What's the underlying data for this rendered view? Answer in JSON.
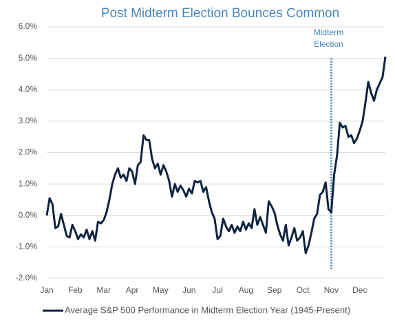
{
  "chart_data": {
    "type": "line",
    "title": "Post Midterm Election Bounces Common",
    "categories": [
      "Jan",
      null,
      null,
      null,
      null,
      null,
      null,
      null,
      null,
      null,
      "Feb",
      null,
      null,
      null,
      null,
      null,
      null,
      null,
      null,
      null,
      "Mar",
      null,
      null,
      null,
      null,
      null,
      null,
      null,
      null,
      null,
      "Apr",
      null,
      null,
      null,
      null,
      null,
      null,
      null,
      null,
      null,
      "May",
      null,
      null,
      null,
      null,
      null,
      null,
      null,
      null,
      null,
      "Jun",
      null,
      null,
      null,
      null,
      null,
      null,
      null,
      null,
      null,
      "Jul",
      null,
      null,
      null,
      null,
      null,
      null,
      null,
      null,
      null,
      "Aug",
      null,
      null,
      null,
      null,
      null,
      null,
      null,
      null,
      null,
      "Sep",
      null,
      null,
      null,
      null,
      null,
      null,
      null,
      null,
      null,
      "Oct",
      null,
      null,
      null,
      null,
      null,
      null,
      null,
      null,
      null,
      "Nov",
      null,
      null,
      null,
      null,
      null,
      null,
      null,
      null,
      null,
      "Dec",
      null,
      null,
      null,
      null,
      null,
      null,
      null,
      null,
      null
    ],
    "series": [
      {
        "name": "Average S&P 500 Performance in Midterm Election Year (1945-Present)",
        "color": "#0f2340",
        "values": [
          0.0,
          0.55,
          0.35,
          -0.4,
          -0.35,
          0.05,
          -0.3,
          -0.65,
          -0.7,
          -0.3,
          -0.5,
          -0.75,
          -0.6,
          -0.7,
          -0.45,
          -0.75,
          -0.5,
          -0.8,
          -0.2,
          -0.25,
          -0.15,
          0.1,
          0.5,
          1.0,
          1.3,
          1.5,
          1.2,
          1.3,
          1.1,
          1.5,
          1.4,
          1.0,
          1.6,
          1.7,
          2.55,
          2.4,
          2.4,
          1.8,
          1.5,
          1.65,
          1.3,
          1.6,
          1.4,
          1.1,
          0.6,
          1.0,
          0.75,
          0.95,
          0.8,
          0.6,
          0.85,
          0.7,
          1.1,
          1.05,
          1.1,
          0.75,
          0.9,
          0.45,
          0.1,
          -0.1,
          -0.75,
          -0.65,
          -0.1,
          -0.35,
          -0.5,
          -0.3,
          -0.55,
          -0.35,
          -0.5,
          -0.2,
          -0.45,
          -0.25,
          -0.4,
          0.2,
          -0.3,
          -0.05,
          -0.3,
          -0.55,
          0.45,
          0.3,
          0.1,
          -0.3,
          -0.6,
          -0.8,
          -0.3,
          -0.95,
          -0.7,
          -0.4,
          -0.8,
          -0.7,
          -0.5,
          -1.2,
          -0.95,
          -0.55,
          -0.1,
          0.05,
          0.65,
          0.75,
          1.05,
          0.2,
          0.1,
          1.3,
          1.9,
          2.95,
          2.8,
          2.85,
          2.5,
          2.55,
          2.3,
          2.45,
          2.7,
          3.0,
          3.6,
          4.25,
          3.9,
          3.65,
          4.0,
          4.2,
          4.4,
          5.05
        ]
      }
    ],
    "ylim": [
      -2,
      6
    ],
    "yticks": [
      {
        "value": -2,
        "label": "-2.0%"
      },
      {
        "value": -1,
        "label": "-1.0%"
      },
      {
        "value": 0,
        "label": "0.0%"
      },
      {
        "value": 1,
        "label": "1.0%"
      },
      {
        "value": 2,
        "label": "2.0%"
      },
      {
        "value": 3,
        "label": "3.0%"
      },
      {
        "value": 4,
        "label": "4.0%"
      },
      {
        "value": 5,
        "label": "5.0%"
      },
      {
        "value": 6,
        "label": "6.0%"
      }
    ],
    "grid": true,
    "annotation": {
      "text": [
        "Midterm",
        "Election"
      ],
      "category": "Nov"
    },
    "legend": "bottom"
  }
}
